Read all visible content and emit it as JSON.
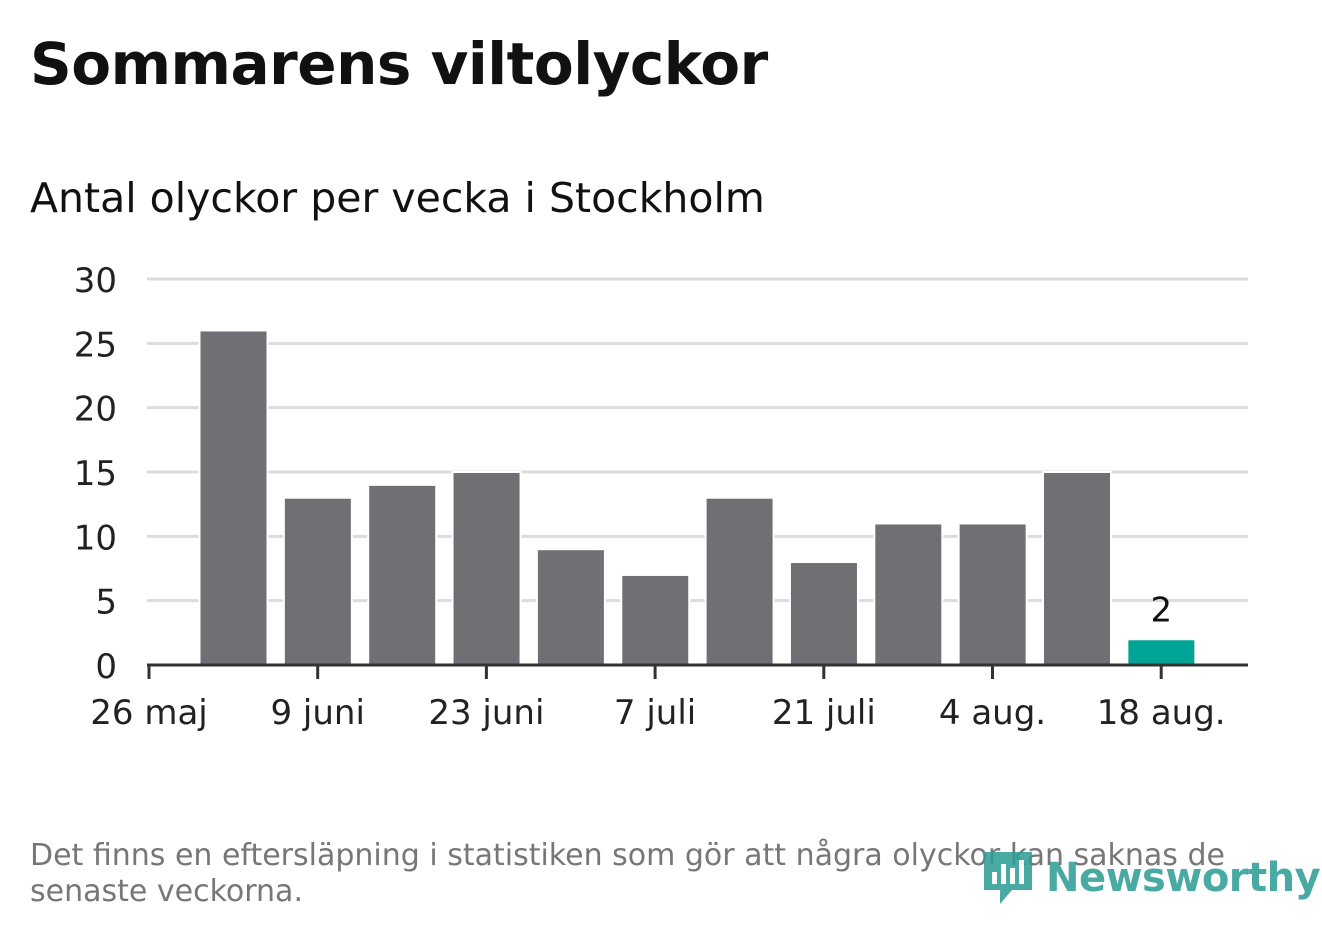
{
  "header": {
    "title": "Sommarens viltolyckor",
    "subtitle": "Antal olyckor per vecka i Stockholm"
  },
  "footer": {
    "note": "Det finns en eftersläpning i statistiken som gör att några olyckor kan saknas de senaste veckorna.",
    "brand": "Newsworthy",
    "brand_icon": "bar-chart-speech-bubble-icon"
  },
  "colors": {
    "bar": "#706f74",
    "highlight": "#00a394",
    "grid": "#dcdcdc",
    "axis": "#333333",
    "brand": "#2f9f96"
  },
  "chart_data": {
    "type": "bar",
    "x_tick_labels": [
      "26 maj",
      "9 juni",
      "23 juni",
      "7 juli",
      "21 juli",
      "4 aug.",
      "18 aug."
    ],
    "values": [
      26,
      13,
      14,
      15,
      9,
      7,
      13,
      8,
      11,
      11,
      15,
      2
    ],
    "highlight_index": 11,
    "data_labels": [
      {
        "index": 11,
        "text": "2"
      }
    ],
    "y_ticks": [
      0,
      5,
      10,
      15,
      20,
      25,
      30
    ],
    "ylim": [
      0,
      30
    ],
    "grid": true,
    "xlabel": "",
    "ylabel": ""
  }
}
